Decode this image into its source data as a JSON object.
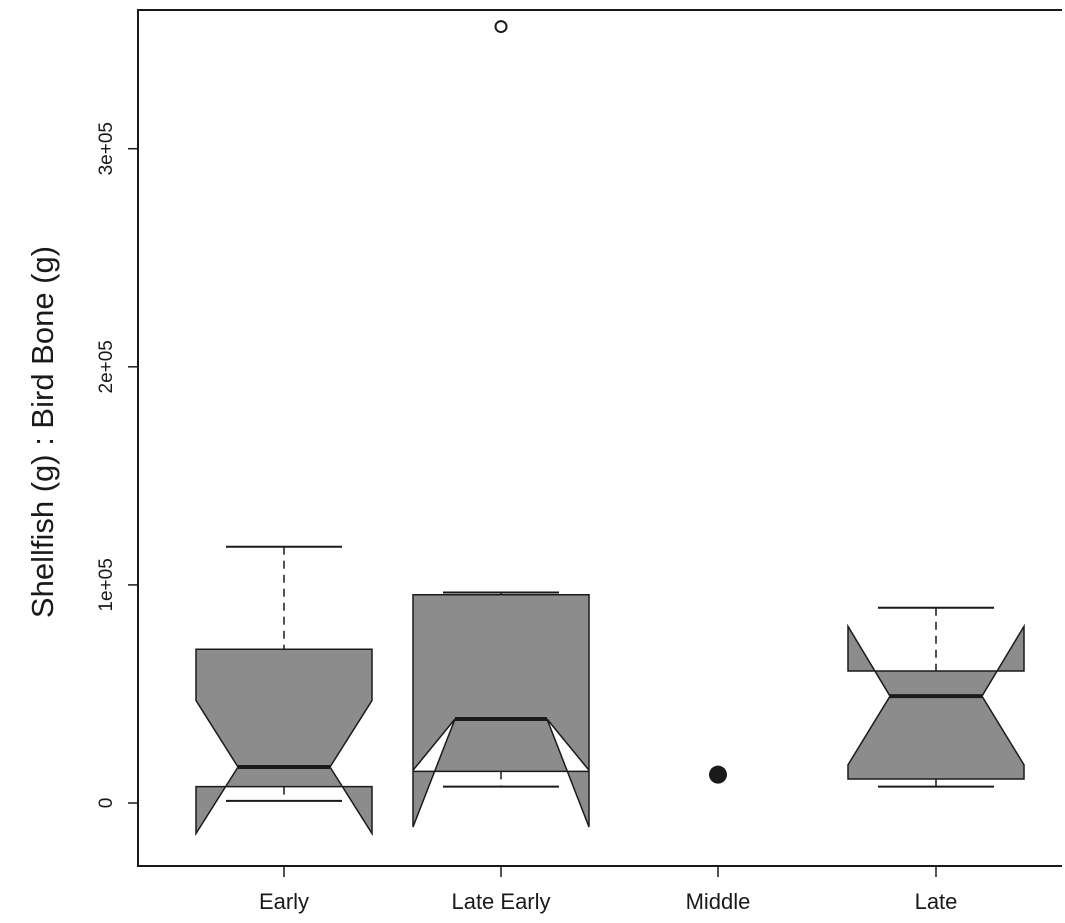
{
  "chart_data": {
    "type": "boxplot",
    "title": "",
    "xlabel": "",
    "ylabel": "Shellfish (g) : Bird Bone (g)",
    "ylim": [
      -28000,
      365000
    ],
    "y_ticks": [
      {
        "value": 0,
        "label": "0"
      },
      {
        "value": 100000,
        "label": "1e+05"
      },
      {
        "value": 200000,
        "label": "2e+05"
      },
      {
        "value": 300000,
        "label": "3e+05"
      }
    ],
    "categories": [
      "Early",
      "Late Early",
      "Middle",
      "Late"
    ],
    "notched": true,
    "box_fill": "#8c8c8c",
    "line_color": "#1a1a1a",
    "boxes": [
      {
        "category": "Early",
        "whisker_low": 1000,
        "q1": 7500,
        "notch_low": -14000,
        "median": 16500,
        "notch_high": 47000,
        "q3": 70500,
        "whisker_high": 117500,
        "outliers": [],
        "single_value": null
      },
      {
        "category": "Late Early",
        "whisker_low": 7500,
        "q1": 14500,
        "notch_low": -11000,
        "median": 38500,
        "notch_high": 15000,
        "q3": 95500,
        "whisker_high": 96500,
        "outliers": [
          356000
        ],
        "single_value": null
      },
      {
        "category": "Middle",
        "whisker_low": null,
        "q1": null,
        "notch_low": null,
        "median": null,
        "notch_high": null,
        "q3": null,
        "whisker_high": null,
        "outliers": [],
        "single_value": 13000
      },
      {
        "category": "Late",
        "whisker_low": 7500,
        "q1": 11000,
        "notch_low": 17500,
        "median": 49000,
        "notch_high": 81000,
        "q3": 60500,
        "whisker_high": 89500,
        "outliers": [],
        "single_value": null
      }
    ]
  }
}
